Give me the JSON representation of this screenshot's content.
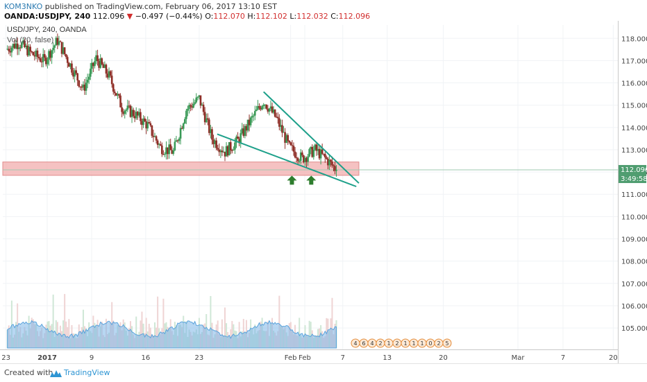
{
  "header": {
    "author": "KOM3NKO",
    "published": "published on TradingView.com, February 06, 2017 13:10 EST",
    "symbol": "OANDA:USDJPY, 240",
    "last": "112.096",
    "change_arrow": "▼",
    "change": "−0.497 (−0.44%)",
    "o_label": "O:",
    "o_value": "112.070",
    "h_label": "H:",
    "h_value": "112.102",
    "l_label": "L:",
    "l_value": "112.032",
    "c_label": "C:",
    "c_value": "112.096"
  },
  "chart_data": {
    "type": "candlestick",
    "title": "USD/JPY, 240, OANDA",
    "subtitle": "Vol (20, false)",
    "y_axis": {
      "ticks": [
        "118.000",
        "117.000",
        "116.000",
        "115.000",
        "114.000",
        "113.000",
        "112.000",
        "111.000",
        "110.000",
        "109.000",
        "108.000",
        "107.000",
        "106.000",
        "105.000"
      ],
      "ylim": [
        104.1,
        118.6
      ]
    },
    "x_axis": {
      "ticks": [
        {
          "label": "23",
          "bold": false,
          "x": 0
        },
        {
          "label": "2017",
          "bold": true,
          "x": 6.4
        },
        {
          "label": "9",
          "bold": false,
          "x": 13.3
        },
        {
          "label": "16",
          "bold": false,
          "x": 21.7
        },
        {
          "label": "23",
          "bold": false,
          "x": 30
        },
        {
          "label": "Feb",
          "bold": false,
          "x": 44.2
        },
        {
          "label": "Feb",
          "bold": false,
          "x": 46.4
        },
        {
          "label": "7",
          "bold": false,
          "x": 52.3
        },
        {
          "label": "13",
          "bold": false,
          "x": 59.2
        },
        {
          "label": "20",
          "bold": false,
          "x": 67.9
        },
        {
          "label": "Mar",
          "bold": false,
          "x": 79.5
        },
        {
          "label": "7",
          "bold": false,
          "x": 86.5
        },
        {
          "label": "20",
          "bold": false,
          "x": 94.3
        }
      ],
      "xlim": [
        -0.5,
        94.8
      ]
    },
    "series": [
      {
        "x": [
          0,
          2,
          4,
          6,
          8,
          10,
          12,
          14,
          16,
          18,
          20,
          22,
          24,
          26,
          28,
          30,
          32,
          34,
          36,
          38,
          40,
          42,
          44,
          46,
          48,
          50,
          51.3
        ],
        "values": [
          117.5,
          117.8,
          117.3,
          117.0,
          117.9,
          116.8,
          115.7,
          117.1,
          116.3,
          114.9,
          114.6,
          114.1,
          113.1,
          112.9,
          114.8,
          115.3,
          113.5,
          112.9,
          113.4,
          114.3,
          115.2,
          114.4,
          113.1,
          112.6,
          113.0,
          112.5,
          112.096
        ]
      }
    ],
    "annotations": {
      "support_zone": {
        "from": 111.85,
        "to": 112.45
      },
      "upper_trendline": [
        [
          40,
          115.6
        ],
        [
          54.8,
          111.5
        ]
      ],
      "lower_trendline": [
        [
          32.8,
          113.7
        ],
        [
          54.4,
          111.35
        ]
      ],
      "arrows_x": [
        44.4,
        47.4
      ],
      "price_label": "112.096",
      "time_label": "3:49:58"
    },
    "colors": {
      "up": "#3a9a57",
      "down": "#8e2d26",
      "trendline": "#1da08a",
      "zone_fill": "#f2b3b3",
      "zone_edge": "#e08c8c",
      "volume": "#7db7e8",
      "arrow": "#2e7d2e",
      "price_label_bg": "#4f9d70"
    },
    "event_icons": [
      "4",
      "6",
      "4",
      "2",
      "1",
      "2",
      "1",
      "1",
      "1",
      "0",
      "2",
      "5"
    ]
  },
  "footer": {
    "created": "Created with",
    "brand": "TradingView",
    "logo_icon": "tradingview-cloud-icon"
  }
}
